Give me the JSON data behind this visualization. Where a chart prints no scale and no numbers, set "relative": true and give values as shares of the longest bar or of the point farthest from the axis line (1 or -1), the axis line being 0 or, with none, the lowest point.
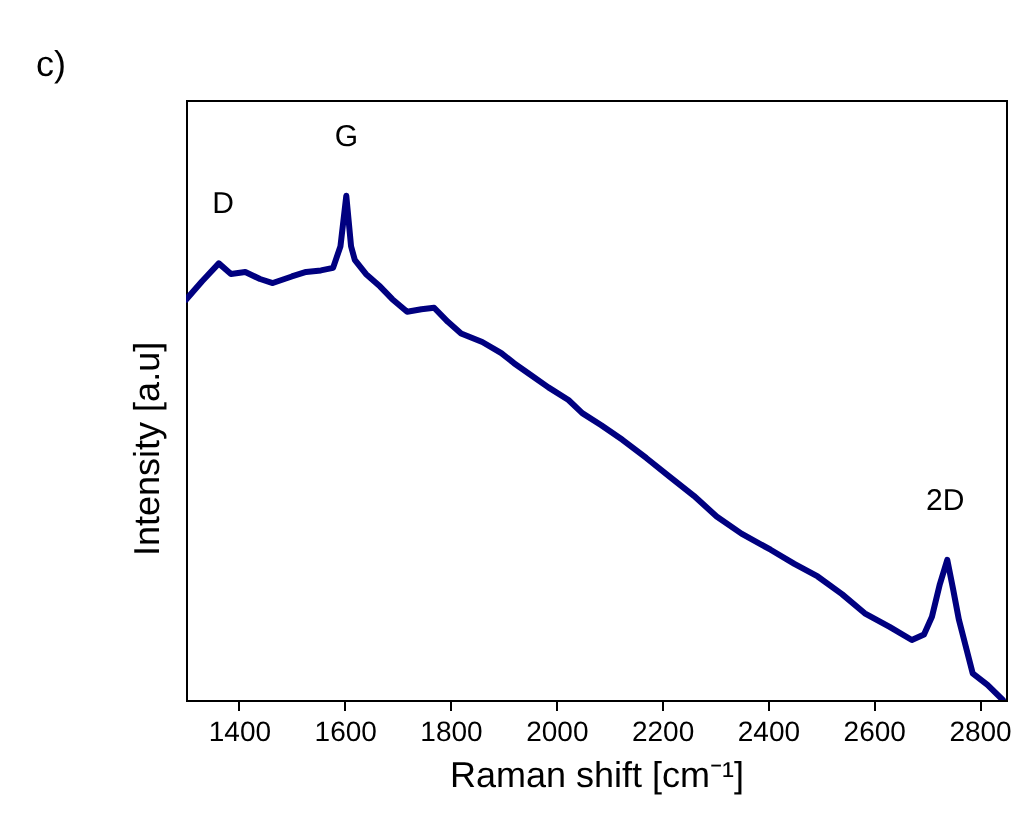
{
  "chart_data": {
    "type": "line",
    "title": "c)",
    "xlabel": "Raman shift [cm⁻¹]",
    "ylabel": "Intensity [a.u]",
    "relative": true,
    "x": [
      1300,
      1330,
      1362,
      1385,
      1412,
      1440,
      1464,
      1500,
      1527,
      1555,
      1578,
      1592,
      1603,
      1612,
      1619,
      1640,
      1667,
      1690,
      1718,
      1745,
      1769,
      1795,
      1820,
      1860,
      1896,
      1920,
      1947,
      1985,
      2023,
      2049,
      2085,
      2125,
      2170,
      2214,
      2260,
      2303,
      2350,
      2405,
      2450,
      2494,
      2540,
      2583,
      2630,
      2672,
      2695,
      2710,
      2725,
      2739,
      2750,
      2761,
      2787,
      2815,
      2844
    ],
    "series": [
      {
        "color": "#000080",
        "values": [
          0.794,
          0.83,
          0.866,
          0.845,
          0.849,
          0.835,
          0.827,
          0.84,
          0.849,
          0.852,
          0.857,
          0.9,
          1,
          0.9,
          0.873,
          0.845,
          0.82,
          0.795,
          0.77,
          0.775,
          0.778,
          0.75,
          0.727,
          0.71,
          0.688,
          0.668,
          0.648,
          0.62,
          0.595,
          0.569,
          0.545,
          0.516,
          0.48,
          0.443,
          0.405,
          0.364,
          0.33,
          0.298,
          0.27,
          0.245,
          0.21,
          0.172,
          0.145,
          0.119,
          0.13,
          0.165,
          0.23,
          0.278,
          0.22,
          0.159,
          0.053,
          0.03,
          0
        ]
      }
    ],
    "xlim": [
      1300,
      2850
    ],
    "xticks": [
      1400,
      1600,
      1800,
      2000,
      2200,
      2400,
      2600,
      2800
    ],
    "annotations": [
      {
        "text": "D",
        "x": 1370,
        "y": 0.866
      },
      {
        "text": "G",
        "x": 1603,
        "y": 1
      },
      {
        "text": "2D",
        "x": 2735,
        "y": 0.278
      }
    ],
    "grid": false,
    "legend": false,
    "marker": "none",
    "line_style": "solid"
  }
}
